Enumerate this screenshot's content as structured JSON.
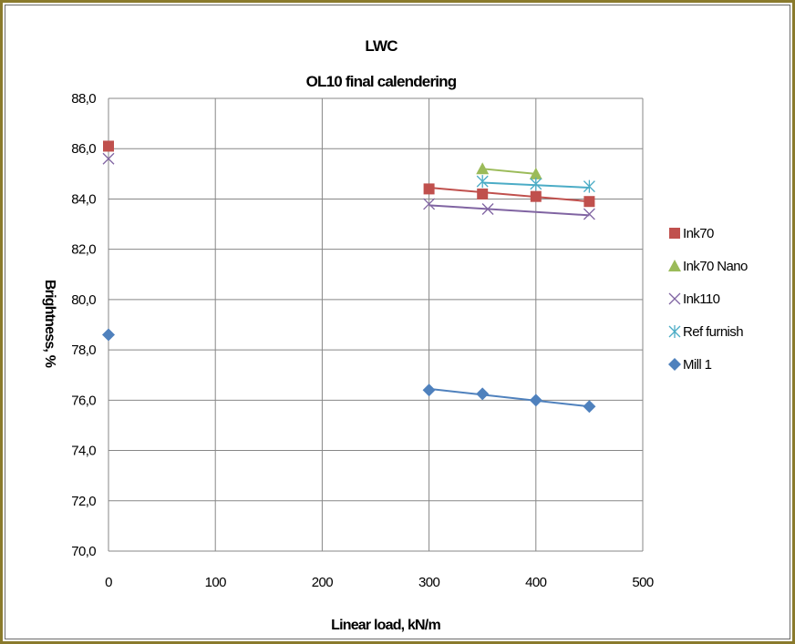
{
  "chart_data": {
    "type": "scatter",
    "title": "LWC",
    "subtitle": "OL10 final calendering",
    "xlabel": "Linear load, kN/m",
    "ylabel": "Brightness, %",
    "xlim": [
      0,
      500
    ],
    "ylim": [
      70.0,
      88.0
    ],
    "x_ticks": [
      "0",
      "100",
      "200",
      "300",
      "400",
      "500"
    ],
    "y_ticks": [
      "70,0",
      "72,0",
      "74,0",
      "76,0",
      "78,0",
      "80,0",
      "82,0",
      "84,0",
      "86,0",
      "88,0"
    ],
    "grid": true,
    "legend_position": "right",
    "series": [
      {
        "name": "Ink70",
        "color": "#c0504d",
        "marker": "square",
        "points": [
          [
            0,
            86.1
          ],
          [
            300,
            84.4
          ],
          [
            350,
            84.2
          ],
          [
            400,
            84.1
          ],
          [
            450,
            83.9
          ]
        ],
        "trendline": [
          [
            300,
            84.45
          ],
          [
            450,
            83.9
          ]
        ]
      },
      {
        "name": "Ink70 Nano",
        "color": "#9bbb59",
        "marker": "triangle",
        "points": [
          [
            350,
            85.2
          ],
          [
            400,
            85.0
          ]
        ],
        "trendline": [
          [
            350,
            85.2
          ],
          [
            400,
            85.0
          ]
        ]
      },
      {
        "name": "Ink110",
        "color": "#8064a2",
        "marker": "x",
        "points": [
          [
            0,
            85.6
          ],
          [
            300,
            83.8
          ],
          [
            355,
            83.6
          ],
          [
            450,
            83.4
          ]
        ],
        "trendline": [
          [
            300,
            83.75
          ],
          [
            450,
            83.35
          ]
        ]
      },
      {
        "name": "Ref furnish",
        "color": "#4bacc6",
        "marker": "star",
        "points": [
          [
            350,
            84.7
          ],
          [
            400,
            84.6
          ],
          [
            450,
            84.5
          ]
        ],
        "trendline": [
          [
            350,
            84.65
          ],
          [
            450,
            84.45
          ]
        ]
      },
      {
        "name": "Mill 1",
        "color": "#4f81bd",
        "marker": "diamond",
        "points": [
          [
            0,
            78.6
          ],
          [
            300,
            76.4
          ],
          [
            350,
            76.25
          ],
          [
            400,
            76.0
          ],
          [
            450,
            75.75
          ]
        ],
        "trendline": [
          [
            300,
            76.45
          ],
          [
            450,
            75.75
          ]
        ]
      }
    ]
  }
}
